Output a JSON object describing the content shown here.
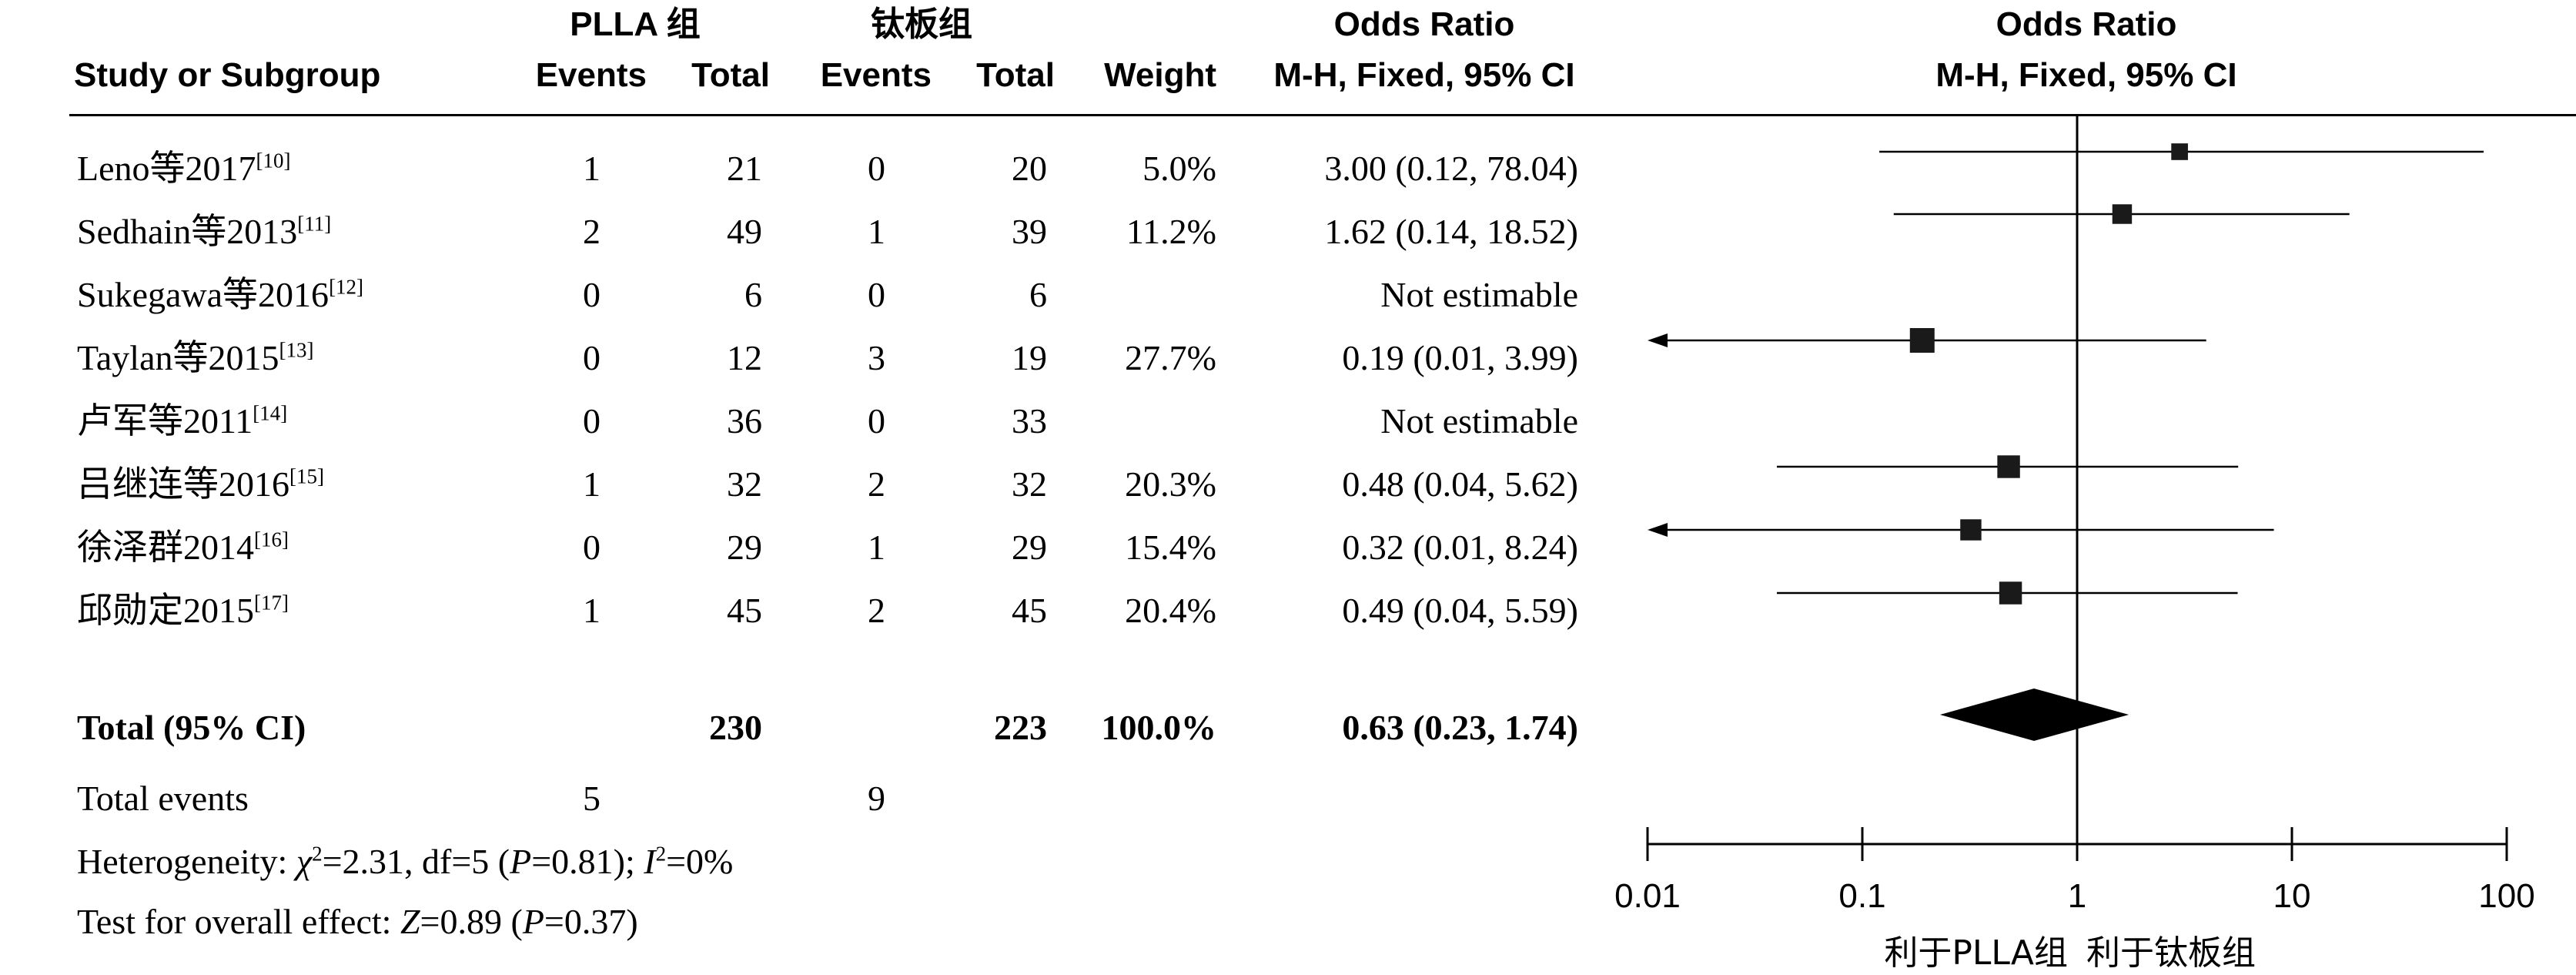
{
  "headers": {
    "study": "Study or Subgroup",
    "group1": "PLLA 组",
    "group2": "钛板组",
    "events": "Events",
    "total": "Total",
    "weight": "Weight",
    "or_title": "Odds Ratio",
    "or_method": "M-H, Fixed, 95% CI"
  },
  "rows": [
    {
      "study": "Leno等2017",
      "ref": "[10]",
      "e1": "1",
      "t1": "21",
      "e2": "0",
      "t2": "20",
      "weight": "5.0%",
      "or_text": "3.00 (0.12, 78.04)"
    },
    {
      "study": "Sedhain等2013",
      "ref": "[11]",
      "e1": "2",
      "t1": "49",
      "e2": "1",
      "t2": "39",
      "weight": "11.2%",
      "or_text": "1.62 (0.14, 18.52)"
    },
    {
      "study": "Sukegawa等2016",
      "ref": "[12]",
      "e1": "0",
      "t1": "6",
      "e2": "0",
      "t2": "6",
      "weight": "",
      "or_text": "Not estimable"
    },
    {
      "study": "Taylan等2015",
      "ref": "[13]",
      "e1": "0",
      "t1": "12",
      "e2": "3",
      "t2": "19",
      "weight": "27.7%",
      "or_text": "0.19 (0.01, 3.99)"
    },
    {
      "study": "卢军等2011",
      "ref": "[14]",
      "e1": "0",
      "t1": "36",
      "e2": "0",
      "t2": "33",
      "weight": "",
      "or_text": "Not estimable"
    },
    {
      "study": "吕继连等2016",
      "ref": "[15]",
      "e1": "1",
      "t1": "32",
      "e2": "2",
      "t2": "32",
      "weight": "20.3%",
      "or_text": "0.48 (0.04, 5.62)"
    },
    {
      "study": "徐泽群2014",
      "ref": "[16]",
      "e1": "0",
      "t1": "29",
      "e2": "1",
      "t2": "29",
      "weight": "15.4%",
      "or_text": "0.32 (0.01, 8.24)"
    },
    {
      "study": "邱勋定2015",
      "ref": "[17]",
      "e1": "1",
      "t1": "45",
      "e2": "2",
      "t2": "45",
      "weight": "20.4%",
      "or_text": "0.49 (0.04, 5.59)"
    }
  ],
  "total": {
    "label": "Total (95% CI)",
    "t1": "230",
    "t2": "223",
    "weight": "100.0%",
    "or_text": "0.63 (0.23, 1.74)"
  },
  "total_events": {
    "label": "Total events",
    "e1": "5",
    "e2": "9"
  },
  "heterogeneity": {
    "prefix": "Heterogeneity: ",
    "chi": "χ",
    "chi_val": "=2.31, df=5 (",
    "p": "P",
    "p_val": "=0.81); ",
    "i": "I",
    "i_val": "=0%"
  },
  "overall_effect": {
    "prefix": "Test for overall effect: ",
    "z": "Z",
    "z_val": "=0.89 (",
    "p": "P",
    "p_val": "=0.37)"
  },
  "axis_labels": {
    "favours_left": "利于PLLA组",
    "favours_right": "利于钛板组"
  },
  "chart_data": {
    "type": "forest",
    "scale": "log",
    "xlim": [
      0.01,
      100
    ],
    "ticks": [
      0.01,
      0.1,
      1,
      10,
      100
    ],
    "tick_labels": [
      "0.01",
      "0.1",
      "1",
      "10",
      "100"
    ],
    "null_line": 1,
    "studies": [
      {
        "name": "Leno等2017",
        "or": 3.0,
        "lo": 0.12,
        "hi": 78.04,
        "weight": 5.0
      },
      {
        "name": "Sedhain等2013",
        "or": 1.62,
        "lo": 0.14,
        "hi": 18.52,
        "weight": 11.2
      },
      {
        "name": "Sukegawa等2016",
        "or": null,
        "lo": null,
        "hi": null,
        "weight": null
      },
      {
        "name": "Taylan等2015",
        "or": 0.19,
        "lo": 0.01,
        "hi": 3.99,
        "weight": 27.7
      },
      {
        "name": "卢军等2011",
        "or": null,
        "lo": null,
        "hi": null,
        "weight": null
      },
      {
        "name": "吕继连等2016",
        "or": 0.48,
        "lo": 0.04,
        "hi": 5.62,
        "weight": 20.3
      },
      {
        "name": "徐泽群2014",
        "or": 0.32,
        "lo": 0.01,
        "hi": 8.24,
        "weight": 15.4
      },
      {
        "name": "邱勋定2015",
        "or": 0.49,
        "lo": 0.04,
        "hi": 5.59,
        "weight": 20.4
      }
    ],
    "pooled": {
      "or": 0.63,
      "lo": 0.23,
      "hi": 1.74
    }
  }
}
